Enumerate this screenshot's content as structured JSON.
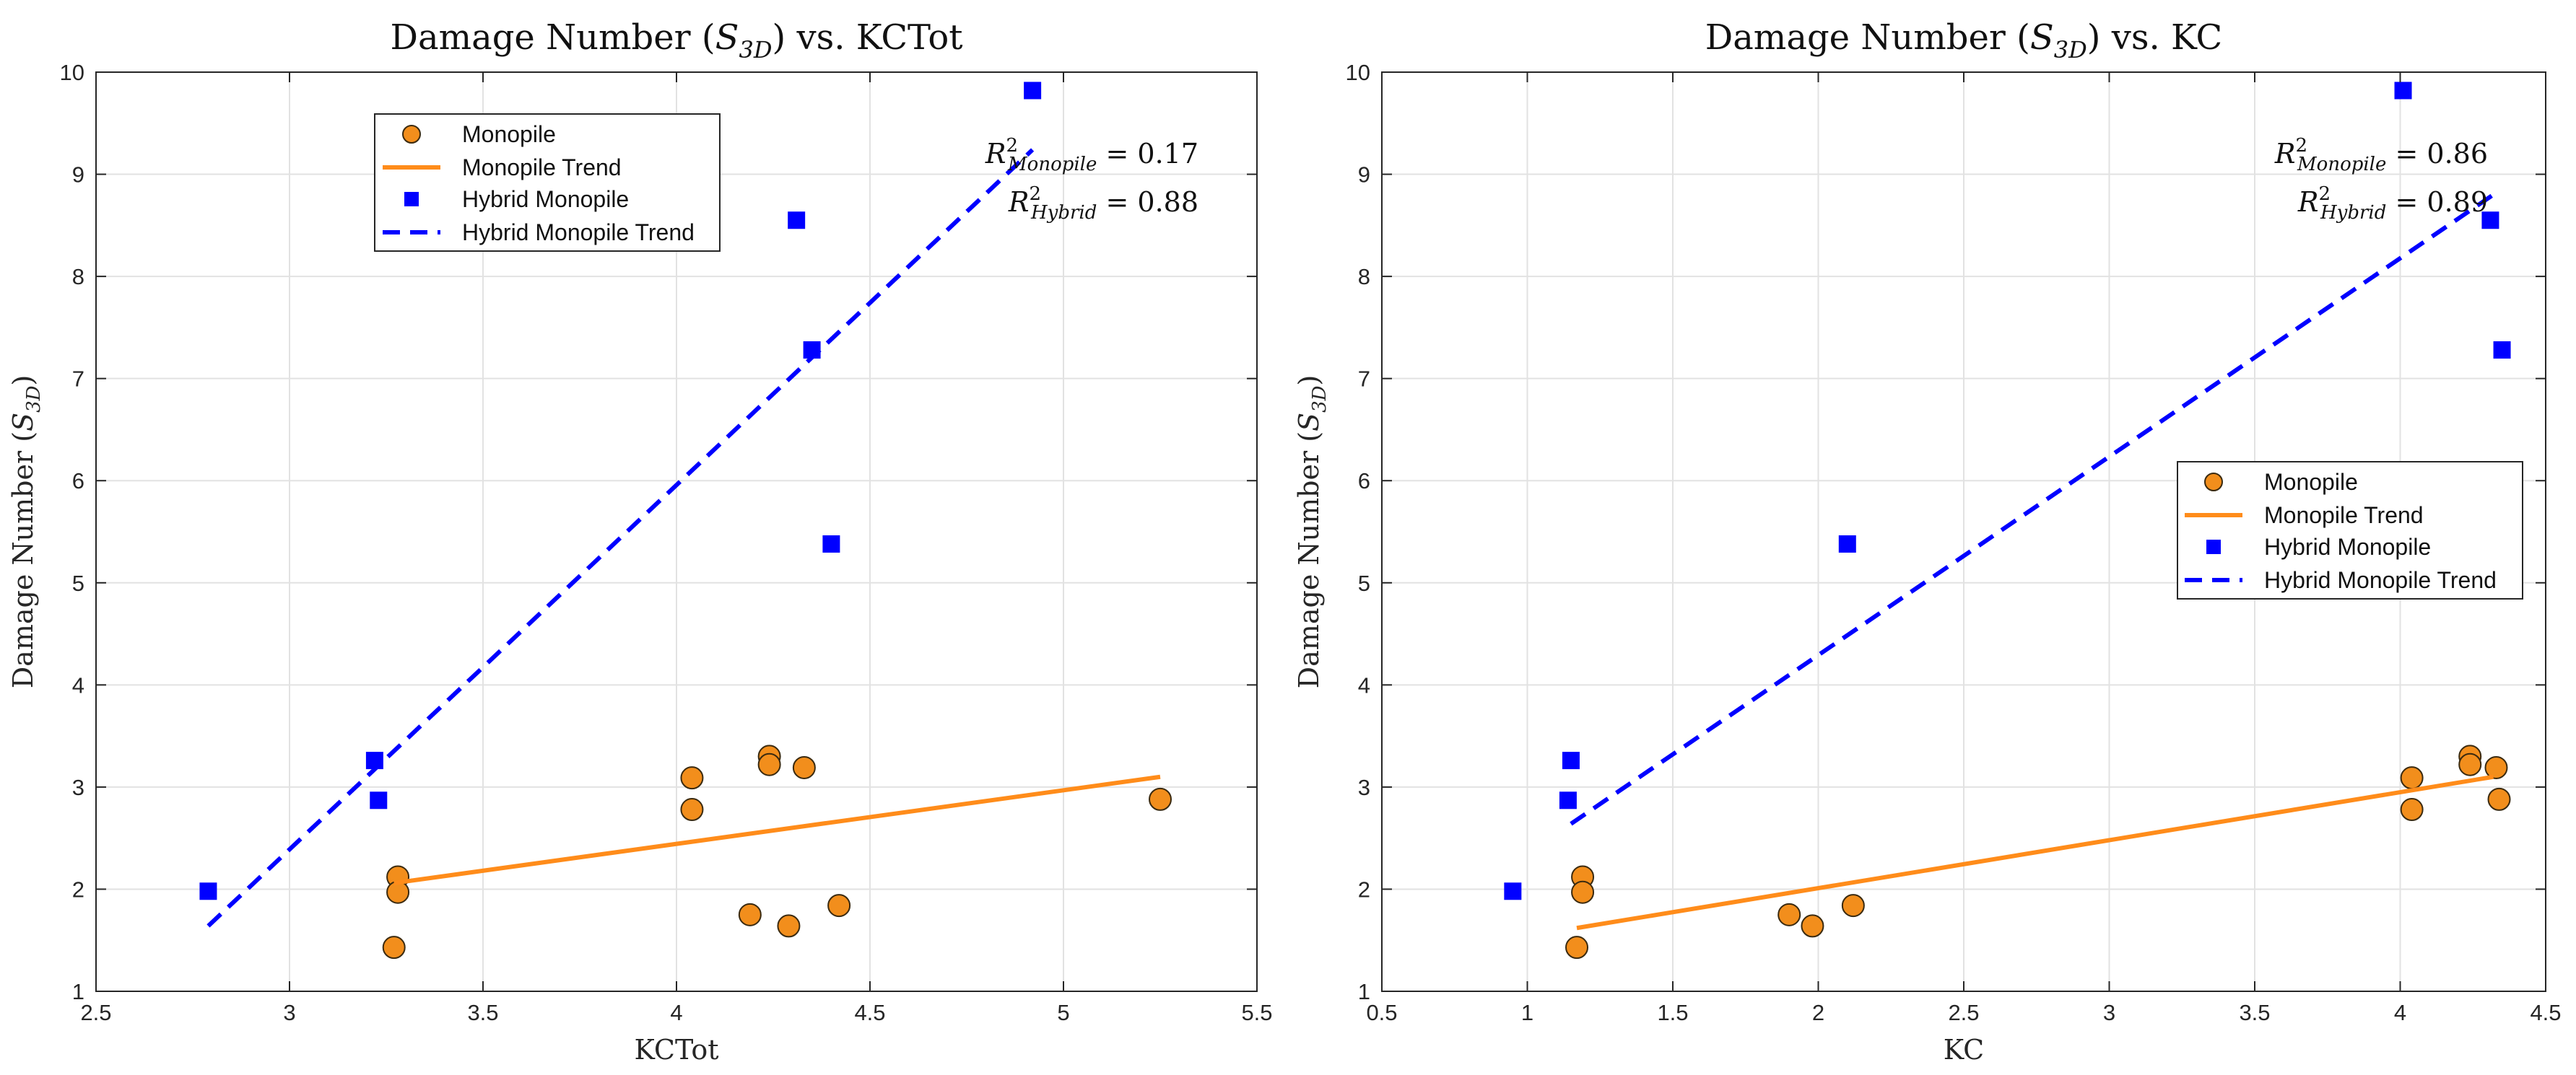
{
  "chart_data": [
    {
      "type": "scatter",
      "title": "Damage Number (S3D) vs. KCTot",
      "title_parts": {
        "prefix": "Damage Number (",
        "sym": "S",
        "sub": "3D",
        "suffix": ") vs. KCTot"
      },
      "xlabel": "KCTot",
      "ylabel": "Damage Number (S3D)",
      "ylabel_parts": {
        "prefix": "Damage Number (",
        "sym": "S",
        "sub": "3D",
        "suffix": ")"
      },
      "xlim": [
        2.5,
        5.5
      ],
      "ylim": [
        1,
        10
      ],
      "xticks": [
        2.5,
        3,
        3.5,
        4,
        4.5,
        5,
        5.5
      ],
      "xtick_labels": [
        "2.5",
        "3",
        "3.5",
        "4",
        "4.5",
        "5",
        "5.5"
      ],
      "yticks": [
        1,
        2,
        3,
        4,
        5,
        6,
        7,
        8,
        9,
        10
      ],
      "ytick_labels": [
        "1",
        "2",
        "3",
        "4",
        "5",
        "6",
        "7",
        "8",
        "9",
        "10"
      ],
      "grid": true,
      "legend_position": "top-left",
      "legend": [
        "Monopile",
        "Monopile Trend",
        "Hybrid Monopile",
        "Hybrid Monopile Trend"
      ],
      "annotations": [
        {
          "sym": "R",
          "sup": "2",
          "sub": "Monopile",
          "eq": "= 0.17",
          "text": "R²Monopile = 0.17"
        },
        {
          "sym": "R",
          "sup": "2",
          "sub": "Hybrid",
          "eq": "= 0.88",
          "text": "R²Hybrid = 0.88"
        }
      ],
      "series": [
        {
          "name": "Monopile",
          "kind": "scatter",
          "marker": "circle",
          "color": "#f28e1c",
          "x": [
            3.28,
            3.28,
            3.27,
            4.04,
            4.04,
            4.24,
            4.24,
            4.33,
            4.19,
            4.29,
            4.42,
            5.25
          ],
          "y": [
            2.12,
            1.97,
            1.43,
            3.09,
            2.78,
            3.3,
            3.22,
            3.19,
            1.75,
            1.64,
            1.84,
            2.88
          ]
        },
        {
          "name": "Monopile Trend",
          "kind": "line",
          "style": "solid",
          "color": "#ff8c1a",
          "x": [
            3.27,
            5.25
          ],
          "y": [
            2.06,
            3.1
          ]
        },
        {
          "name": "Hybrid Monopile",
          "kind": "scatter",
          "marker": "square",
          "color": "#0000ff",
          "x": [
            2.79,
            3.22,
            3.23,
            4.31,
            4.35,
            4.4,
            4.92
          ],
          "y": [
            1.98,
            3.26,
            2.87,
            8.55,
            7.28,
            5.38,
            9.82
          ]
        },
        {
          "name": "Hybrid Monopile Trend",
          "kind": "line",
          "style": "dashed",
          "color": "#0000ff",
          "x": [
            2.79,
            4.92
          ],
          "y": [
            1.64,
            9.24
          ]
        }
      ]
    },
    {
      "type": "scatter",
      "title": "Damage Number (S3D) vs. KC",
      "title_parts": {
        "prefix": "Damage Number (",
        "sym": "S",
        "sub": "3D",
        "suffix": ") vs. KC"
      },
      "xlabel": "KC",
      "ylabel": "Damage Number (S3D)",
      "ylabel_parts": {
        "prefix": "Damage Number (",
        "sym": "S",
        "sub": "3D",
        "suffix": ")"
      },
      "xlim": [
        0.5,
        4.5
      ],
      "ylim": [
        1,
        10
      ],
      "xticks": [
        0.5,
        1,
        1.5,
        2,
        2.5,
        3,
        3.5,
        4,
        4.5
      ],
      "xtick_labels": [
        "0.5",
        "1",
        "1.5",
        "2",
        "2.5",
        "3",
        "3.5",
        "4",
        "4.5"
      ],
      "yticks": [
        1,
        2,
        3,
        4,
        5,
        6,
        7,
        8,
        9,
        10
      ],
      "ytick_labels": [
        "1",
        "2",
        "3",
        "4",
        "5",
        "6",
        "7",
        "8",
        "9",
        "10"
      ],
      "grid": true,
      "legend_position": "middle-right",
      "legend": [
        "Monopile",
        "Monopile Trend",
        "Hybrid Monopile",
        "Hybrid Monopile Trend"
      ],
      "annotations": [
        {
          "sym": "R",
          "sup": "2",
          "sub": "Monopile",
          "eq": "= 0.86",
          "text": "R²Monopile = 0.86"
        },
        {
          "sym": "R",
          "sup": "2",
          "sub": "Hybrid",
          "eq": "= 0.89",
          "text": "R²Hybrid = 0.89"
        }
      ],
      "series": [
        {
          "name": "Monopile",
          "kind": "scatter",
          "marker": "circle",
          "color": "#f28e1c",
          "x": [
            1.19,
            1.19,
            1.17,
            1.9,
            1.98,
            2.12,
            4.04,
            4.04,
            4.24,
            4.24,
            4.33,
            4.34
          ],
          "y": [
            2.12,
            1.97,
            1.43,
            1.75,
            1.64,
            1.84,
            3.09,
            2.78,
            3.3,
            3.22,
            3.19,
            2.88
          ]
        },
        {
          "name": "Monopile Trend",
          "kind": "line",
          "style": "solid",
          "color": "#ff8c1a",
          "x": [
            1.17,
            4.32
          ],
          "y": [
            1.62,
            3.1
          ]
        },
        {
          "name": "Hybrid Monopile",
          "kind": "scatter",
          "marker": "square",
          "color": "#0000ff",
          "x": [
            0.95,
            1.15,
            1.14,
            2.1,
            4.01,
            4.31,
            4.35
          ],
          "y": [
            1.98,
            3.26,
            2.87,
            5.38,
            9.82,
            8.55,
            7.28
          ]
        },
        {
          "name": "Hybrid Monopile Trend",
          "kind": "line",
          "style": "dashed",
          "color": "#0000ff",
          "x": [
            1.15,
            4.32
          ],
          "y": [
            2.64,
            8.8
          ]
        }
      ]
    }
  ]
}
